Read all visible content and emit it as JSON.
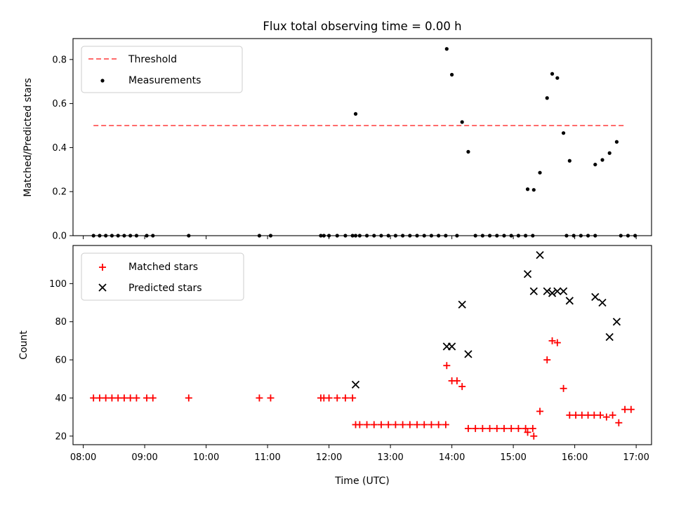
{
  "chart_data": [
    {
      "type": "scatter",
      "title": "Flux total observing time = 0.00 h",
      "ylabel": "Matched/Predicted stars",
      "xlabel": "",
      "xlim": [
        "07:50",
        "17:15"
      ],
      "ylim": [
        0,
        0.895
      ],
      "yticks": [
        "0.0",
        "0.2",
        "0.4",
        "0.6",
        "0.8"
      ],
      "grid": false,
      "legend_placement": "top-left",
      "threshold": {
        "name": "Threshold",
        "value": 0.5,
        "x_start": "08:10",
        "x_end": "16:50",
        "color": "#ff6b6b",
        "style": "dashed"
      },
      "series": [
        {
          "name": "Measurements",
          "color": "#000000",
          "marker": "dot",
          "x": [
            "08:10",
            "08:16",
            "08:22",
            "08:28",
            "08:34",
            "08:40",
            "08:46",
            "08:52",
            "09:02",
            "09:08",
            "09:43",
            "10:52",
            "11:03",
            "11:52",
            "11:55",
            "12:00",
            "12:08",
            "12:16",
            "12:23",
            "12:26",
            "12:30",
            "12:37",
            "12:44",
            "12:51",
            "12:58",
            "13:05",
            "13:12",
            "13:19",
            "13:26",
            "13:33",
            "13:40",
            "13:47",
            "13:54",
            "14:05",
            "14:23",
            "14:30",
            "14:37",
            "14:44",
            "14:51",
            "14:58",
            "15:05",
            "15:12",
            "15:19",
            "15:52",
            "15:59",
            "16:06",
            "16:13",
            "16:20",
            "16:45",
            "16:52",
            "16:59",
            "12:26",
            "13:55",
            "14:00",
            "14:10",
            "14:16",
            "15:14",
            "15:20",
            "15:26",
            "15:33",
            "15:38",
            "15:43",
            "15:49",
            "15:55",
            "16:20",
            "16:27",
            "16:34",
            "16:41"
          ],
          "y": [
            0,
            0,
            0,
            0,
            0,
            0,
            0,
            0,
            0,
            0,
            0,
            0,
            0,
            0,
            0,
            0,
            0,
            0,
            0,
            0,
            0,
            0,
            0,
            0,
            0,
            0,
            0,
            0,
            0,
            0,
            0,
            0,
            0,
            0,
            0,
            0,
            0,
            0,
            0,
            0,
            0,
            0,
            0,
            0,
            0,
            0,
            0,
            0,
            0,
            0,
            0,
            0.553,
            0.848,
            0.731,
            0.516,
            0.381,
            0.211,
            0.208,
            0.286,
            0.625,
            0.735,
            0.716,
            0.466,
            0.34,
            0.323,
            0.344,
            0.375,
            0.426
          ]
        }
      ]
    },
    {
      "type": "scatter",
      "title": "",
      "ylabel": "Count",
      "xlabel": "Time (UTC)",
      "xlim": [
        "07:50",
        "17:15"
      ],
      "ylim": [
        15.5,
        120
      ],
      "yticks": [
        "20",
        "40",
        "60",
        "80",
        "100"
      ],
      "xticks": [
        "08:00",
        "09:00",
        "10:00",
        "11:00",
        "12:00",
        "13:00",
        "14:00",
        "15:00",
        "16:00",
        "17:00"
      ],
      "grid": false,
      "legend_placement": "top-left",
      "series": [
        {
          "name": "Matched stars",
          "color": "#ff0000",
          "marker": "plus",
          "x": [
            "08:10",
            "08:16",
            "08:22",
            "08:28",
            "08:34",
            "08:40",
            "08:46",
            "08:52",
            "09:02",
            "09:08",
            "09:43",
            "10:52",
            "11:03",
            "11:52",
            "11:55",
            "12:00",
            "12:08",
            "12:16",
            "12:23",
            "12:26",
            "12:30",
            "12:37",
            "12:44",
            "12:51",
            "12:58",
            "13:05",
            "13:12",
            "13:19",
            "13:26",
            "13:33",
            "13:40",
            "13:47",
            "13:54",
            "13:55",
            "14:00",
            "14:05",
            "14:10",
            "14:16",
            "14:23",
            "14:30",
            "14:37",
            "14:44",
            "14:51",
            "14:58",
            "15:05",
            "15:12",
            "15:19",
            "15:14",
            "15:20",
            "15:26",
            "15:33",
            "15:38",
            "15:43",
            "15:49",
            "15:55",
            "16:01",
            "16:07",
            "16:13",
            "16:19",
            "16:25",
            "16:31",
            "16:37",
            "16:43",
            "16:49",
            "16:55"
          ],
          "y": [
            40,
            40,
            40,
            40,
            40,
            40,
            40,
            40,
            40,
            40,
            40,
            40,
            40,
            40,
            40,
            40,
            40,
            40,
            40,
            26,
            26,
            26,
            26,
            26,
            26,
            26,
            26,
            26,
            26,
            26,
            26,
            26,
            26,
            57,
            49,
            49,
            46,
            24,
            24,
            24,
            24,
            24,
            24,
            24,
            24,
            24,
            24,
            22,
            20,
            33,
            60,
            70,
            69,
            45,
            31,
            31,
            31,
            31,
            31,
            31,
            30,
            31,
            27,
            34,
            34
          ]
        },
        {
          "name": "Predicted stars",
          "color": "#000000",
          "marker": "x",
          "x": [
            "12:26",
            "13:55",
            "14:00",
            "14:10",
            "14:16",
            "15:14",
            "15:20",
            "15:26",
            "15:33",
            "15:38",
            "15:43",
            "15:49",
            "15:55",
            "16:20",
            "16:27",
            "16:34",
            "16:41"
          ],
          "y": [
            47,
            67,
            67,
            89,
            63,
            105,
            96,
            115,
            96,
            95,
            96,
            96,
            91,
            93,
            90,
            72,
            80
          ]
        }
      ]
    }
  ]
}
